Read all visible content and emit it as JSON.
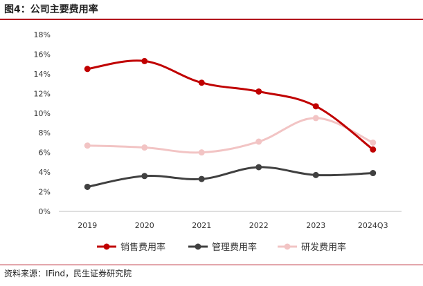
{
  "title": "图4：公司主要费用率",
  "source": "资料来源：IFind，民生证券研究院",
  "chart_data": {
    "type": "line",
    "title": "",
    "xlabel": "",
    "ylabel": "",
    "categories": [
      "2019",
      "2020",
      "2021",
      "2022",
      "2023",
      "2024Q3"
    ],
    "ylim": [
      0,
      18
    ],
    "yticks": [
      "0%",
      "2%",
      "4%",
      "6%",
      "8%",
      "10%",
      "12%",
      "14%",
      "16%",
      "18%"
    ],
    "grid": false,
    "legend_position": "bottom",
    "series": [
      {
        "name": "销售费用率",
        "color": "#c00000",
        "values": [
          14.5,
          15.3,
          13.1,
          12.2,
          10.7,
          6.3
        ]
      },
      {
        "name": "管理费用率",
        "color": "#404040",
        "values": [
          2.5,
          3.6,
          3.3,
          4.5,
          3.7,
          3.9
        ]
      },
      {
        "name": "研发费用率",
        "color": "#f2c4c4",
        "values": [
          6.7,
          6.5,
          6.0,
          7.1,
          9.5,
          7.0
        ]
      }
    ]
  }
}
